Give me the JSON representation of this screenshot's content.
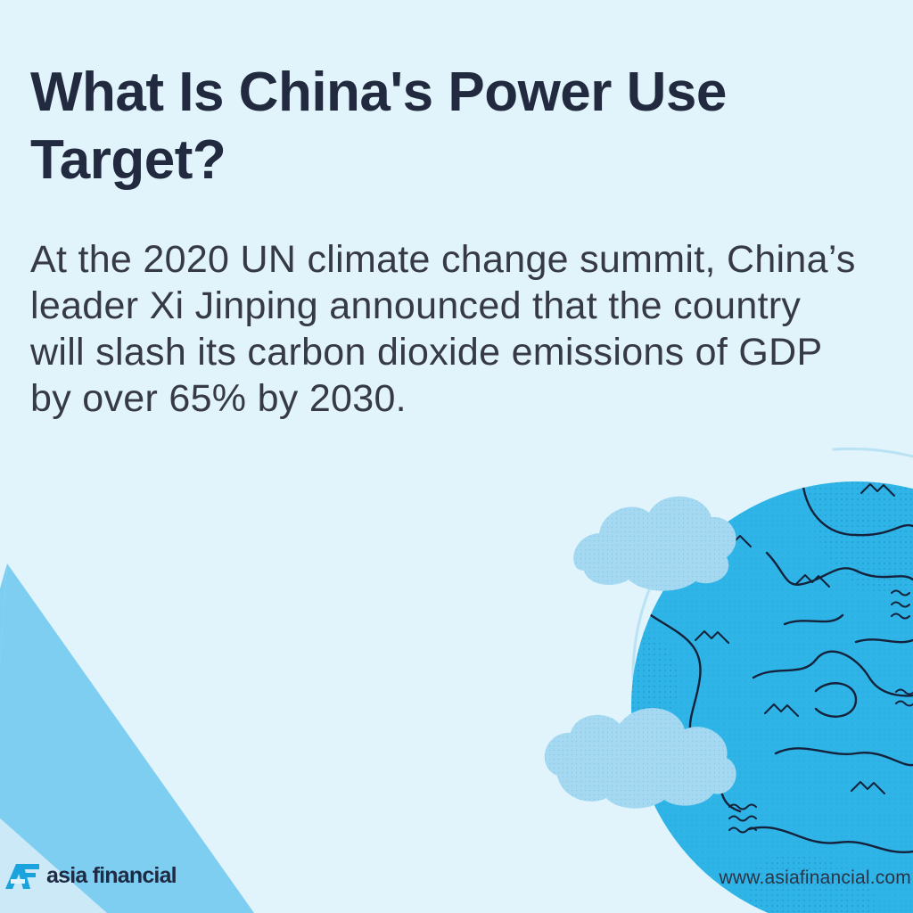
{
  "headline": "What Is China's Power Use Target?",
  "body": "At the 2020 UN climate change summit, China’s leader Xi Jinping announced that the country will slash its carbon dioxide emissions of GDP by over 65% by 2030.",
  "brand": {
    "logo_text": "asia financial",
    "website": "www.asiafinancial.com"
  },
  "illustration": {
    "subject": "globe-with-clouds",
    "colors": {
      "background": "#e1f3fb",
      "globe": "#2eb4e6",
      "cloud": "#a5d9f1",
      "triangle": "#7dcef1",
      "heading": "#212a3e"
    }
  }
}
